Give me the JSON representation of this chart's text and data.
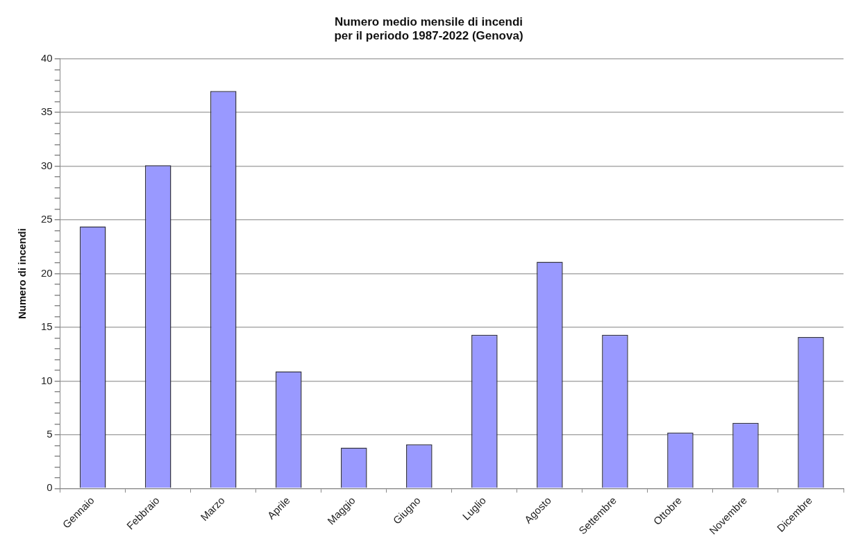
{
  "chart_data": {
    "type": "bar",
    "title": "Numero medio mensile di incendi\nper il periodo 1987-2022 (Genova)",
    "ylabel": "Numero di incendi",
    "categories": [
      "Gennaio",
      "Febbraio",
      "Marzo",
      "Aprile",
      "Maggio",
      "Giugno",
      "Luglio",
      "Agosto",
      "Settembre",
      "Ottobre",
      "Novembre",
      "Dicembre"
    ],
    "values": [
      24.4,
      30.1,
      37.0,
      10.9,
      3.8,
      4.1,
      14.3,
      21.1,
      14.3,
      5.2,
      6.1,
      14.1
    ],
    "color": "#9999ff",
    "ylim": [
      0,
      40
    ],
    "yticks": [
      0,
      {
        "value": 1,
        "label": null
      },
      {
        "value": 2,
        "label": null
      },
      {
        "value": 3,
        "label": null
      },
      {
        "value": 4,
        "label": null
      },
      5,
      {
        "value": 6,
        "label": null
      },
      {
        "value": 7,
        "label": null
      },
      {
        "value": 8,
        "label": null
      },
      {
        "value": 9,
        "label": null
      },
      10,
      {
        "value": 11,
        "label": null
      },
      {
        "value": 12,
        "label": null
      },
      {
        "value": 13,
        "label": null
      },
      {
        "value": 14,
        "label": null
      },
      15,
      {
        "value": 16,
        "label": null
      },
      {
        "value": 17,
        "label": null
      },
      {
        "value": 18,
        "label": null
      },
      {
        "value": 19,
        "label": null
      },
      20,
      {
        "value": 21,
        "label": null
      },
      {
        "value": 22,
        "label": null
      },
      {
        "value": 23,
        "label": null
      },
      {
        "value": 24,
        "label": null
      },
      25,
      {
        "value": 26,
        "label": null
      },
      {
        "value": 27,
        "label": null
      },
      {
        "value": 28,
        "label": null
      },
      {
        "value": 29,
        "label": null
      },
      30,
      {
        "value": 31,
        "label": null
      },
      {
        "value": 32,
        "label": null
      },
      {
        "value": 33,
        "label": null
      },
      {
        "value": 34,
        "label": null
      },
      35,
      {
        "value": 36,
        "label": null
      },
      {
        "value": 37,
        "label": null
      },
      {
        "value": 38,
        "label": null
      },
      {
        "value": 39,
        "label": null
      },
      40
    ],
    "grid": "y"
  }
}
